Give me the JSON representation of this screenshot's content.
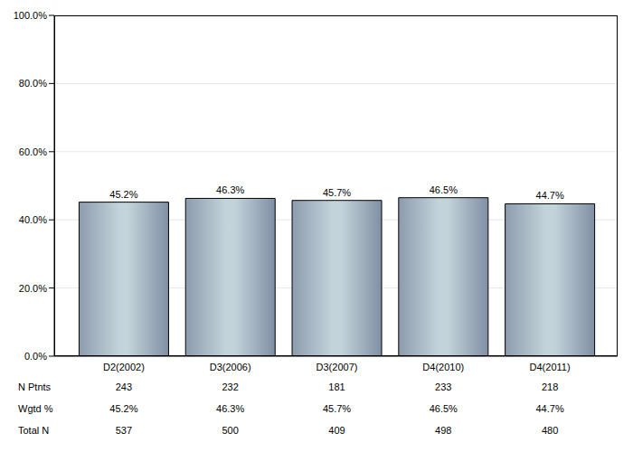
{
  "chart_data": {
    "type": "bar",
    "categories": [
      "D2(2002)",
      "D3(2006)",
      "D3(2007)",
      "D4(2010)",
      "D4(2011)"
    ],
    "values": [
      45.2,
      46.3,
      45.7,
      46.5,
      44.7
    ],
    "value_labels": [
      "45.2%",
      "46.3%",
      "45.7%",
      "46.5%",
      "44.7%"
    ],
    "data_labels": true,
    "color": "#c3d3da",
    "ylim": [
      0,
      100
    ],
    "yticks": [
      {
        "value": 0,
        "label": "0.0%"
      },
      {
        "value": 20,
        "label": "20.0%"
      },
      {
        "value": 40,
        "label": "40.0%"
      },
      {
        "value": 60,
        "label": "60.0%"
      },
      {
        "value": 80,
        "label": "80.0%"
      },
      {
        "value": 100,
        "label": "100.0%"
      }
    ],
    "grid": true,
    "table": {
      "rows": [
        {
          "label": "N Ptnts",
          "values": [
            "243",
            "232",
            "181",
            "233",
            "218"
          ]
        },
        {
          "label": "Wgtd %",
          "values": [
            "45.2%",
            "46.3%",
            "45.7%",
            "46.5%",
            "44.7%"
          ]
        },
        {
          "label": "Total N",
          "values": [
            "537",
            "500",
            "409",
            "498",
            "480"
          ]
        }
      ]
    }
  }
}
